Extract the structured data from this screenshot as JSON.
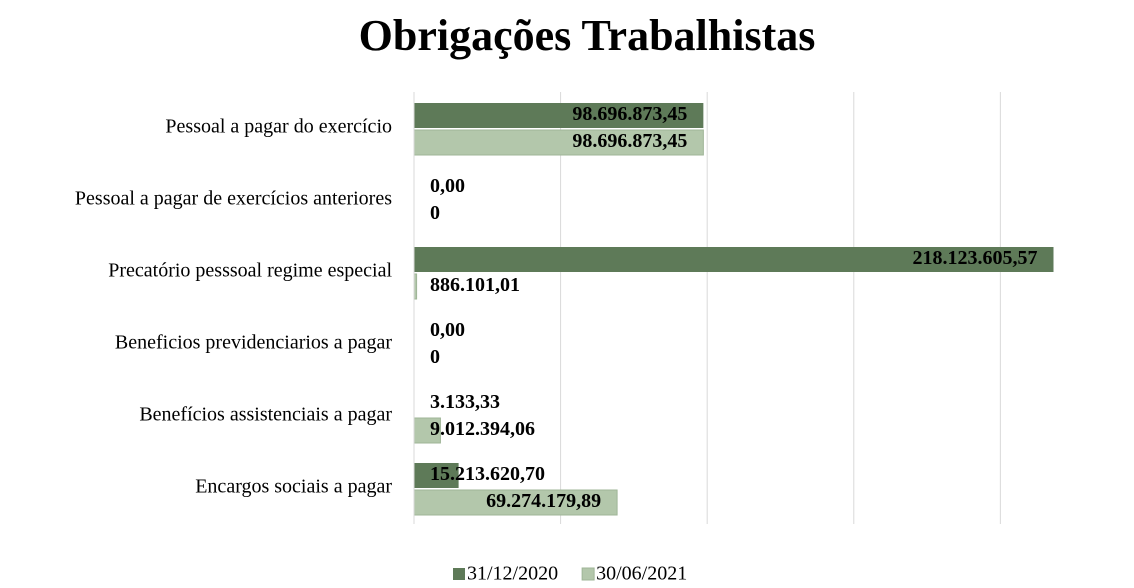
{
  "chart_data": {
    "type": "hbar",
    "title": "Obrigações Trabalhistas",
    "categories": [
      "Pessoal a pagar do exercício",
      "Pessoal a pagar de exercícios anteriores",
      "Precatório pesssoal regime especial",
      "Beneficios previdenciarios a pagar",
      "Benefícios assistenciais a pagar",
      "Encargos sociais a pagar"
    ],
    "series": [
      {
        "name": "31/12/2020",
        "color": "#5e7a58",
        "values": [
          98696873.45,
          0,
          218123605.57,
          0,
          3133.33,
          15213620.7
        ],
        "value_labels": [
          "98.696.873,45",
          "0,00",
          "218.123.605,57",
          "0,00",
          "3.133,33",
          "15.213.620,70"
        ]
      },
      {
        "name": "30/06/2021",
        "color": "#b3c7ab",
        "values": [
          98696873.45,
          0,
          886101.01,
          0,
          9012394.06,
          69274179.89
        ],
        "value_labels": [
          "98.696.873,45",
          "0",
          "886.101,01",
          "0",
          "9.012.394,06",
          "69.274.179,89"
        ]
      }
    ],
    "xlim": [
      0,
      220000000
    ],
    "xticks": [
      0,
      50000000,
      100000000,
      150000000,
      200000000
    ],
    "grid": true,
    "legend": "bottom"
  }
}
